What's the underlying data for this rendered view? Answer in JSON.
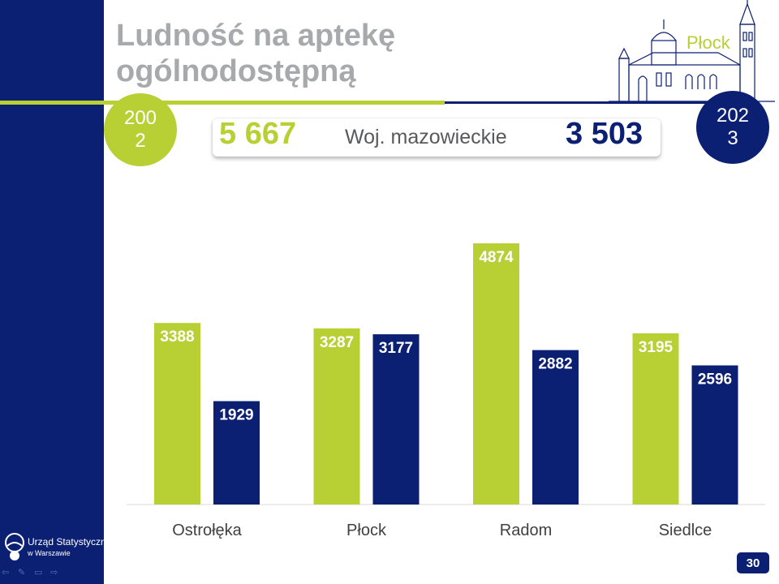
{
  "title": {
    "line1": "Ludność na aptekę",
    "line2": "ogólnodostępną"
  },
  "city_name": "Płock",
  "years": {
    "start": "2002",
    "end": "2023"
  },
  "summary": {
    "value_start": "5 667",
    "label": "Woj. mazowieckie",
    "value_end": "3 503"
  },
  "colors": {
    "green": "#b9d034",
    "navy": "#0b1f73",
    "grey_title": "#a7a9ac"
  },
  "chart_data": {
    "type": "bar",
    "categories": [
      "Ostrołęka",
      "Płock",
      "Radom",
      "Siedlce"
    ],
    "series": [
      {
        "name": "2002",
        "color": "#b9d034",
        "values": [
          3388,
          3287,
          4874,
          3195
        ]
      },
      {
        "name": "2023",
        "color": "#0b1f73",
        "values": [
          1929,
          3177,
          2882,
          2596
        ]
      }
    ],
    "ylim": [
      0,
      5000
    ],
    "grid": false,
    "data_labels": true
  },
  "logo": {
    "name": "Urząd Statystyczny",
    "sub": "w Warszawie"
  },
  "nav_icons": [
    "back-arrow-icon",
    "pen-icon",
    "menu-icon",
    "forward-arrow-icon"
  ],
  "page_number": "30"
}
